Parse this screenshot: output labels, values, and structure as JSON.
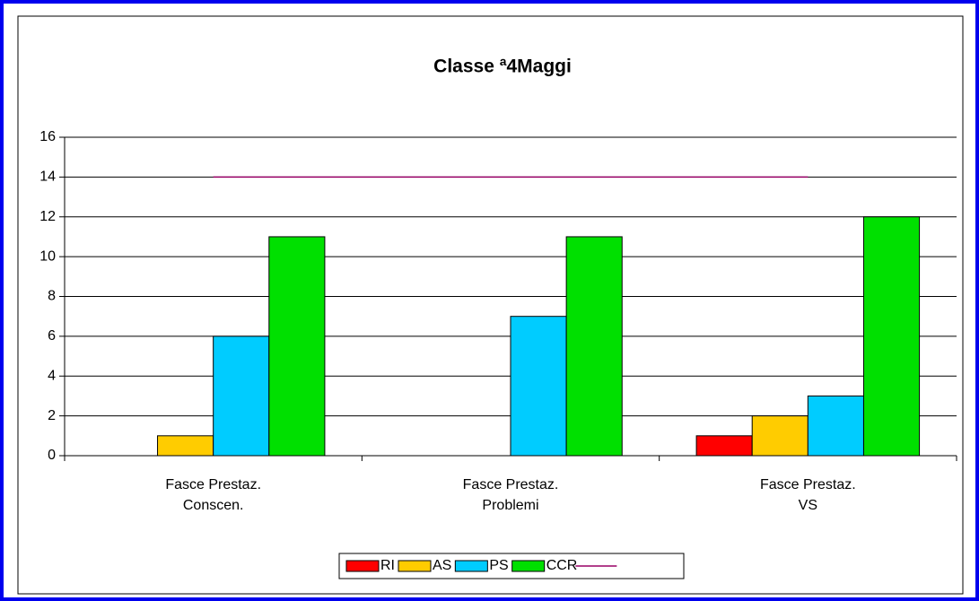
{
  "chart_data": {
    "type": "bar",
    "title": "Classe ª4Maggi",
    "categories": [
      "Fasce Prestaz.\nConscen.",
      "Fasce Prestaz.\nProblemi",
      "Fasce Prestaz.\nVS"
    ],
    "series": [
      {
        "name": "RI",
        "color": "#ff0000",
        "values": [
          0,
          0,
          1
        ]
      },
      {
        "name": "AS",
        "color": "#ffcc00",
        "values": [
          1,
          0,
          2
        ]
      },
      {
        "name": "PS",
        "color": "#00ccff",
        "values": [
          6,
          7,
          3
        ]
      },
      {
        "name": "CCR",
        "color": "#00e000",
        "values": [
          11,
          11,
          12
        ]
      },
      {
        "type": "line",
        "color": "#990066",
        "values": [
          14,
          14,
          14
        ]
      }
    ],
    "ylim": [
      0,
      16
    ],
    "yticks": [
      0,
      2,
      4,
      6,
      8,
      10,
      12,
      14,
      16
    ],
    "grid": true,
    "legend": "bottom"
  }
}
